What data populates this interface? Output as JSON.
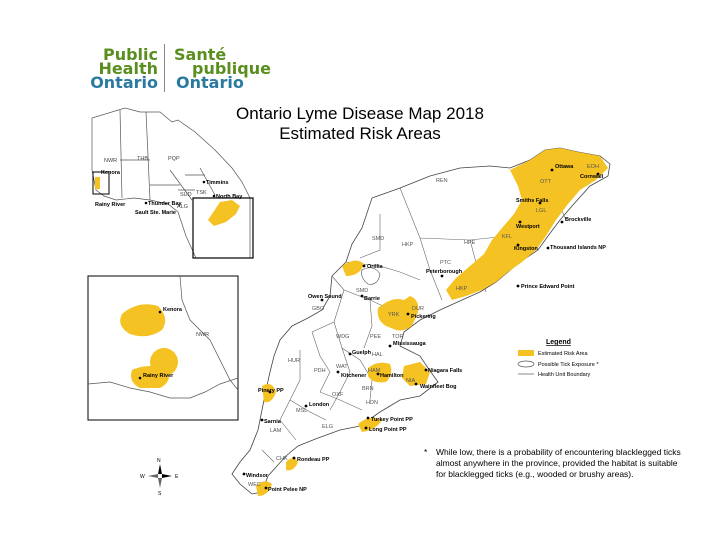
{
  "logo": {
    "en_line1": "Public",
    "en_line2": "Health",
    "en_line3": "Ontario",
    "fr_line1": "Santé",
    "fr_line2": "publique",
    "fr_line3": "Ontario"
  },
  "title": {
    "line1": "Ontario Lyme Disease Map 2018",
    "line2": "Estimated Risk Areas"
  },
  "legend": {
    "title": "Legend",
    "items": [
      {
        "label": "Estimated Risk Area"
      },
      {
        "label": "Possible Tick Exposure *"
      },
      {
        "label": "Health Unit Boundary"
      }
    ]
  },
  "footnote": {
    "marker": "*",
    "text": "While low, there is a probability of encountering blacklegged ticks almost anywhere in the province, provided the habitat is suitable for blacklegged ticks (e.g., wooded or brushy areas)."
  },
  "compass": {
    "n": "N",
    "s": "S",
    "e": "E",
    "w": "W"
  },
  "colors": {
    "risk": "#f5c223",
    "boundary": "#555555",
    "logo_green": "#5a8f1f",
    "logo_blue": "#2a7aa0"
  },
  "places": {
    "ottawa": "Ottawa",
    "cornwall": "Cornwall",
    "smiths_falls": "Smiths Falls",
    "brockville": "Brockville",
    "westport": "Westport",
    "kingston": "Kingston",
    "thousand_islands": "Thousand Islands NP",
    "prince_edward": "Prince Edward Point",
    "peterborough": "Peterborough",
    "orillia": "Orillia",
    "barrie": "Barrie",
    "owen_sound": "Owen Sound",
    "pickering": "Pickering",
    "mississauga": "Mississauga",
    "guelph": "Guelph",
    "kitchener": "Kitchener",
    "hamilton": "Hamilton",
    "niagara_falls": "Niagara Falls",
    "wainfleet": "Wainfleet Bog",
    "pinery": "Pinery PP",
    "london": "London",
    "sarnia": "Sarnia",
    "turkey_point": "Turkey Point PP",
    "long_point": "Long Point PP",
    "rondeau": "Rondeau PP",
    "windsor": "Windsor",
    "point_pelee": "Point Pelee NP",
    "kenora": "Kenora",
    "rainy_river": "Rainy River",
    "thunder_bay": "Thunder Bay",
    "sault": "Sault Ste. Marie",
    "timmins": "Timmins",
    "north_bay": "North Bay"
  },
  "units": {
    "edh": "EOH",
    "ott": "OTT",
    "lgl": "LGL",
    "kfl": "KFL",
    "hpe": "HPE",
    "hkp": "HKP",
    "ren": "REN",
    "ptc": "PTC",
    "smd": "SMD",
    "yrk": "YRK",
    "dur": "DUR",
    "tor": "TOR",
    "pee": "PEE",
    "hal": "HAL",
    "ham": "HAM",
    "nia": "NIA",
    "wdg": "WDG",
    "gbo": "GBO",
    "hur": "HUR",
    "pdh": "PDH",
    "wat": "WAT",
    "brn": "BRN",
    "hdn": "HDN",
    "oxf": "OXF",
    "mbl": "MSL",
    "lam": "LAM",
    "elg": "ELG",
    "chk": "CHK",
    "wec": "WEC",
    "nwr": "NWR",
    "thb": "THB",
    "pqp": "PQP",
    "tsk": "TSK",
    "sud": "SUD",
    "alg": "ALG"
  }
}
